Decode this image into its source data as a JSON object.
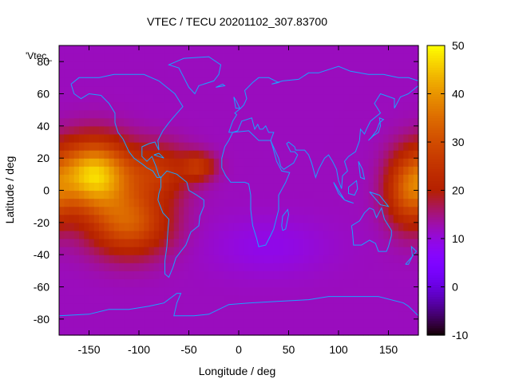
{
  "chart_data": {
    "type": "heatmap",
    "title": "VTEC / TECU 20201102_307.83700",
    "xlabel": "Longitude / deg",
    "ylabel": "Latitude / deg",
    "key_label": "'Vtec_",
    "xlim": [
      -180,
      180
    ],
    "ylim": [
      -90,
      90
    ],
    "x_ticks": [
      -150,
      -100,
      -50,
      0,
      50,
      100,
      150
    ],
    "y_ticks": [
      -80,
      -60,
      -40,
      -20,
      0,
      20,
      40,
      60,
      80
    ],
    "colorbar": {
      "min": -10,
      "max": 50,
      "ticks": [
        50,
        40,
        30,
        20,
        10,
        0,
        -10
      ]
    },
    "grid": false,
    "overlay": "coastlines",
    "colors": {
      "coastline": "#1aa3ff",
      "palette": "gnuplot black-blue-purple-red-orange-yellow"
    },
    "background_value": 12,
    "features": [
      {
        "lon": -145,
        "lat": 10,
        "sigma_lon": 26,
        "sigma_lat": 15,
        "amplitude": 34
      },
      {
        "lon": -110,
        "lat": -20,
        "sigma_lon": 28,
        "sigma_lat": 14,
        "amplitude": 20
      },
      {
        "lon": -80,
        "lat": 12,
        "sigma_lon": 22,
        "sigma_lat": 12,
        "amplitude": 12
      },
      {
        "lon": -40,
        "lat": 15,
        "sigma_lon": 12,
        "sigma_lat": 6,
        "amplitude": 12
      },
      {
        "lon": 170,
        "lat": 0,
        "sigma_lon": 16,
        "sigma_lat": 16,
        "amplitude": 18
      },
      {
        "lon": 30,
        "lat": -35,
        "sigma_lon": 40,
        "sigma_lat": 12,
        "amplitude": -3
      }
    ]
  }
}
